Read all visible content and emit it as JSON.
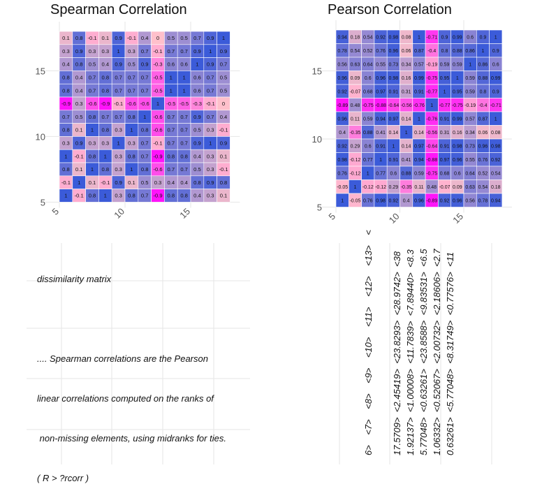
{
  "colors": {
    "low": "#ff00ff",
    "mid": "#ffc0cb",
    "high": "#3b5bd9",
    "grid": "#e6e6e6"
  },
  "note": {
    "lines": [
      "dissimilarity matrix",
      "",
      ".... Spearman correlations are the Pearson",
      "linear correlations computed on the ranks of",
      " non-missing elements, using midranks for ties.",
      "( R > ?rcorr )"
    ]
  },
  "vertical_text": {
    "lines": [
      "6>    <7>    <8>    <9>    <10>    <11>    <12>    <13>    <",
      "17.5709>  <2.45419>  <23.8293>  <28.9742>  <38",
      "1.92137>  <1.00008>  <11.7839>  <7.89440>  <8.3",
      "5.77048>  <0.63261>  <23.8588>  <9.83531>  <6.5",
      "1.06332>  <0.52067>  <2.00732>  <2.18606>  <2.7",
      "0.63261>  <5.77048>  <8.31749>  <0.77576>  <11"
    ]
  },
  "chart_data": [
    {
      "type": "heatmap",
      "title": "Spearman Correlation",
      "xticks": [
        "5",
        "10",
        "15"
      ],
      "yticks": [
        "5",
        "10",
        "15"
      ],
      "tick_positions": [
        5,
        10,
        15
      ],
      "x_range": [
        5,
        18
      ],
      "y_range": [
        5,
        18
      ],
      "grid": true,
      "rows": [
        [
          "0.1",
          "0.8",
          "-0.1",
          "0.1",
          "0.9",
          "-0.1",
          "0.4",
          "0",
          "0.5",
          "0.5",
          "0.7",
          "0.9",
          "1"
        ],
        [
          "0.3",
          "0.9",
          "0.3",
          "0.3",
          "1",
          "0.3",
          "0.7",
          "-0.1",
          "0.7",
          "0.7",
          "0.9",
          "1",
          "0.9"
        ],
        [
          "0.4",
          "0.8",
          "0.5",
          "0.4",
          "0.9",
          "0.5",
          "0.9",
          "-0.3",
          "0.6",
          "0.6",
          "1",
          "0.9",
          "0.7"
        ],
        [
          "0.8",
          "0.4",
          "0.7",
          "0.8",
          "0.7",
          "0.7",
          "0.7",
          "-0.5",
          "1",
          "1",
          "0.6",
          "0.7",
          "0.5"
        ],
        [
          "0.8",
          "0.4",
          "0.7",
          "0.8",
          "0.7",
          "0.7",
          "0.7",
          "-0.5",
          "1",
          "1",
          "0.6",
          "0.7",
          "0.5"
        ],
        [
          "-0.9",
          "0.3",
          "-0.6",
          "-0.9",
          "-0.1",
          "-0.6",
          "-0.6",
          "1",
          "-0.5",
          "-0.5",
          "-0.3",
          "-0.1",
          "0"
        ],
        [
          "0.7",
          "0.5",
          "0.8",
          "0.7",
          "0.7",
          "0.8",
          "1",
          "-0.6",
          "0.7",
          "0.7",
          "0.9",
          "0.7",
          "0.4"
        ],
        [
          "0.8",
          "0.1",
          "1",
          "0.8",
          "0.3",
          "1",
          "0.8",
          "-0.6",
          "0.7",
          "0.7",
          "0.5",
          "0.3",
          "-0.1"
        ],
        [
          "0.3",
          "0.9",
          "0.3",
          "0.3",
          "1",
          "0.3",
          "0.7",
          "-0.1",
          "0.7",
          "0.7",
          "0.9",
          "1",
          "0.9"
        ],
        [
          "1",
          "-0.1",
          "0.8",
          "1",
          "0.3",
          "0.8",
          "0.7",
          "-0.9",
          "0.8",
          "0.8",
          "0.4",
          "0.3",
          "0.1"
        ],
        [
          "0.8",
          "0.1",
          "1",
          "0.8",
          "0.3",
          "1",
          "0.8",
          "-0.6",
          "0.7",
          "0.7",
          "0.5",
          "0.3",
          "-0.1"
        ],
        [
          "-0.1",
          "1",
          "0.1",
          "-0.1",
          "0.9",
          "0.1",
          "0.5",
          "0.3",
          "0.4",
          "0.4",
          "0.8",
          "0.9",
          "0.8"
        ],
        [
          "1",
          "-0.1",
          "0.8",
          "1",
          "0.3",
          "0.8",
          "0.7",
          "-0.9",
          "0.8",
          "0.8",
          "0.4",
          "0.3",
          "0.1"
        ]
      ]
    },
    {
      "type": "heatmap",
      "title": "Pearson Correlation",
      "xticks": [
        "5",
        "10",
        "15"
      ],
      "yticks": [
        "5",
        "10",
        "15"
      ],
      "tick_positions": [
        5,
        10,
        15
      ],
      "x_range": [
        5,
        18
      ],
      "y_range": [
        5,
        18
      ],
      "grid": true,
      "rows": [
        [
          "0.94",
          "0.18",
          "0.54",
          "0.92",
          "0.98",
          "0.08",
          "1",
          "-0.71",
          "0.9",
          "0.99",
          "0.6",
          "0.9",
          "1"
        ],
        [
          "0.78",
          "0.54",
          "0.52",
          "0.76",
          "0.96",
          "0.06",
          "0.87",
          "-0.4",
          "0.8",
          "0.88",
          "0.86",
          "1",
          "0.9"
        ],
        [
          "0.56",
          "0.63",
          "0.64",
          "0.55",
          "0.73",
          "0.34",
          "0.57",
          "-0.19",
          "0.59",
          "0.59",
          "1",
          "0.86",
          "0.6"
        ],
        [
          "0.96",
          "0.09",
          "0.6",
          "0.96",
          "0.98",
          "0.16",
          "0.99",
          "-0.75",
          "0.95",
          "1",
          "0.59",
          "0.88",
          "0.99"
        ],
        [
          "0.92",
          "-0.07",
          "0.68",
          "0.97",
          "0.91",
          "0.31",
          "0.91",
          "-0.77",
          "1",
          "0.95",
          "0.59",
          "0.8",
          "0.9"
        ],
        [
          "-0.89",
          "0.48",
          "-0.75",
          "-0.88",
          "-0.64",
          "-0.56",
          "-0.76",
          "1",
          "-0.77",
          "-0.75",
          "-0.19",
          "-0.4",
          "-0.71"
        ],
        [
          "0.96",
          "0.11",
          "0.59",
          "0.94",
          "0.97",
          "0.14",
          "1",
          "-0.76",
          "0.91",
          "0.99",
          "0.57",
          "0.87",
          "1"
        ],
        [
          "0.4",
          "-0.35",
          "0.88",
          "0.41",
          "0.14",
          "1",
          "0.14",
          "-0.56",
          "0.31",
          "0.16",
          "0.34",
          "0.06",
          "0.08"
        ],
        [
          "0.92",
          "0.29",
          "0.6",
          "0.91",
          "1",
          "0.14",
          "0.97",
          "-0.64",
          "0.91",
          "0.98",
          "0.73",
          "0.96",
          "0.98"
        ],
        [
          "0.98",
          "-0.12",
          "0.77",
          "1",
          "0.91",
          "0.41",
          "0.94",
          "-0.88",
          "0.97",
          "0.96",
          "0.55",
          "0.76",
          "0.92"
        ],
        [
          "0.76",
          "-0.12",
          "1",
          "0.77",
          "0.6",
          "0.88",
          "0.59",
          "-0.75",
          "0.68",
          "0.6",
          "0.64",
          "0.52",
          "0.54"
        ],
        [
          "-0.05",
          "1",
          "-0.12",
          "-0.12",
          "0.29",
          "-0.35",
          "0.11",
          "0.48",
          "-0.07",
          "0.09",
          "0.63",
          "0.54",
          "0.18"
        ],
        [
          "1",
          "-0.05",
          "0.76",
          "0.98",
          "0.92",
          "0.4",
          "0.96",
          "-0.89",
          "0.92",
          "0.96",
          "0.56",
          "0.78",
          "0.94"
        ]
      ]
    }
  ]
}
